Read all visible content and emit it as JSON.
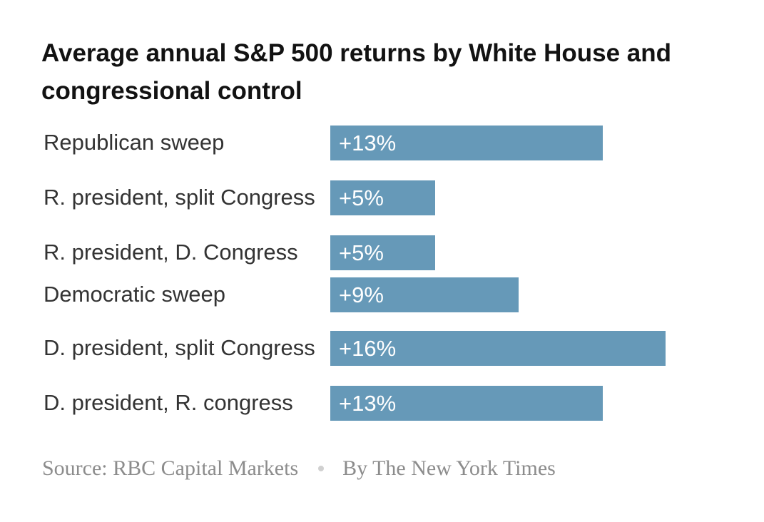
{
  "chart_data": {
    "type": "bar",
    "orientation": "horizontal",
    "title": "Average annual S&P 500 returns by White House and congressional control",
    "categories": [
      "Republican sweep",
      "R. president, split Congress",
      "R. president, D. Congress",
      "Democratic sweep",
      "D. president, split Congress",
      "D. president, R. congress"
    ],
    "values": [
      13,
      5,
      5,
      9,
      16,
      13
    ],
    "value_labels": [
      "+13%",
      "+5%",
      "+5%",
      "+9%",
      "+16%",
      "+13%"
    ],
    "unit": "%",
    "xlim": [
      0,
      16
    ],
    "bar_color": "#6699b8"
  },
  "footer": {
    "source": "Source: RBC Capital Markets",
    "credit": "By The New York Times"
  }
}
